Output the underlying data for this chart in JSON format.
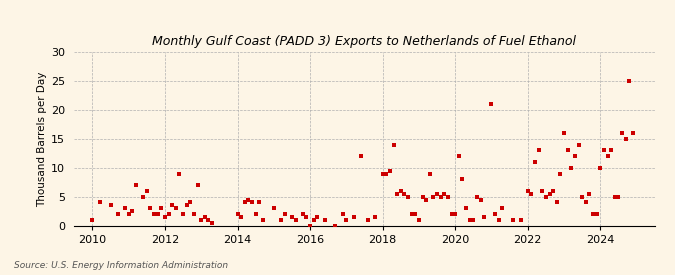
{
  "title": "Monthly Gulf Coast (PADD 3) Exports to Netherlands of Fuel Ethanol",
  "ylabel": "Thousand Barrels per Day",
  "source": "Source: U.S. Energy Information Administration",
  "background_color": "#fdf5e6",
  "dot_color": "#cc0000",
  "ylim": [
    0,
    30
  ],
  "yticks": [
    0,
    5,
    10,
    15,
    20,
    25,
    30
  ],
  "xticks": [
    2010,
    2012,
    2014,
    2016,
    2018,
    2020,
    2022,
    2024
  ],
  "xlim": [
    2009.5,
    2025.5
  ],
  "data": [
    [
      2010.0,
      1.0
    ],
    [
      2010.2,
      4.0
    ],
    [
      2010.5,
      3.5
    ],
    [
      2010.7,
      2.0
    ],
    [
      2010.9,
      3.0
    ],
    [
      2011.0,
      2.0
    ],
    [
      2011.1,
      2.5
    ],
    [
      2011.2,
      7.0
    ],
    [
      2011.4,
      5.0
    ],
    [
      2011.5,
      6.0
    ],
    [
      2011.6,
      3.0
    ],
    [
      2011.7,
      2.0
    ],
    [
      2011.8,
      2.0
    ],
    [
      2011.9,
      3.0
    ],
    [
      2012.0,
      1.5
    ],
    [
      2012.1,
      2.0
    ],
    [
      2012.2,
      3.5
    ],
    [
      2012.3,
      3.0
    ],
    [
      2012.4,
      9.0
    ],
    [
      2012.5,
      2.0
    ],
    [
      2012.6,
      3.5
    ],
    [
      2012.7,
      4.0
    ],
    [
      2012.8,
      2.0
    ],
    [
      2012.9,
      7.0
    ],
    [
      2013.0,
      1.0
    ],
    [
      2013.1,
      1.5
    ],
    [
      2013.2,
      1.0
    ],
    [
      2013.3,
      0.5
    ],
    [
      2014.0,
      2.0
    ],
    [
      2014.1,
      1.5
    ],
    [
      2014.2,
      4.0
    ],
    [
      2014.3,
      4.5
    ],
    [
      2014.4,
      4.0
    ],
    [
      2014.5,
      2.0
    ],
    [
      2014.6,
      4.0
    ],
    [
      2014.7,
      1.0
    ],
    [
      2015.0,
      3.0
    ],
    [
      2015.2,
      1.0
    ],
    [
      2015.3,
      2.0
    ],
    [
      2015.5,
      1.5
    ],
    [
      2015.6,
      1.0
    ],
    [
      2015.8,
      2.0
    ],
    [
      2015.9,
      1.5
    ],
    [
      2016.0,
      0.0
    ],
    [
      2016.1,
      1.0
    ],
    [
      2016.2,
      1.5
    ],
    [
      2016.4,
      1.0
    ],
    [
      2016.7,
      0.0
    ],
    [
      2016.9,
      2.0
    ],
    [
      2017.0,
      1.0
    ],
    [
      2017.2,
      1.5
    ],
    [
      2017.4,
      12.0
    ],
    [
      2017.6,
      1.0
    ],
    [
      2017.8,
      1.5
    ],
    [
      2018.0,
      9.0
    ],
    [
      2018.1,
      9.0
    ],
    [
      2018.2,
      9.5
    ],
    [
      2018.3,
      14.0
    ],
    [
      2018.4,
      5.5
    ],
    [
      2018.5,
      6.0
    ],
    [
      2018.6,
      5.5
    ],
    [
      2018.7,
      5.0
    ],
    [
      2018.8,
      2.0
    ],
    [
      2018.9,
      2.0
    ],
    [
      2019.0,
      1.0
    ],
    [
      2019.1,
      5.0
    ],
    [
      2019.2,
      4.5
    ],
    [
      2019.3,
      9.0
    ],
    [
      2019.4,
      5.0
    ],
    [
      2019.5,
      5.5
    ],
    [
      2019.6,
      5.0
    ],
    [
      2019.7,
      5.5
    ],
    [
      2019.8,
      5.0
    ],
    [
      2019.9,
      2.0
    ],
    [
      2020.0,
      2.0
    ],
    [
      2020.1,
      12.0
    ],
    [
      2020.2,
      8.0
    ],
    [
      2020.3,
      3.0
    ],
    [
      2020.4,
      1.0
    ],
    [
      2020.5,
      1.0
    ],
    [
      2020.6,
      5.0
    ],
    [
      2020.7,
      4.5
    ],
    [
      2020.8,
      1.5
    ],
    [
      2021.0,
      21.0
    ],
    [
      2021.1,
      2.0
    ],
    [
      2021.2,
      1.0
    ],
    [
      2021.3,
      3.0
    ],
    [
      2021.6,
      1.0
    ],
    [
      2021.8,
      1.0
    ],
    [
      2022.0,
      6.0
    ],
    [
      2022.1,
      5.5
    ],
    [
      2022.2,
      11.0
    ],
    [
      2022.3,
      13.0
    ],
    [
      2022.4,
      6.0
    ],
    [
      2022.5,
      5.0
    ],
    [
      2022.6,
      5.5
    ],
    [
      2022.7,
      6.0
    ],
    [
      2022.8,
      4.0
    ],
    [
      2022.9,
      9.0
    ],
    [
      2023.0,
      16.0
    ],
    [
      2023.1,
      13.0
    ],
    [
      2023.2,
      10.0
    ],
    [
      2023.3,
      12.0
    ],
    [
      2023.4,
      14.0
    ],
    [
      2023.5,
      5.0
    ],
    [
      2023.6,
      4.0
    ],
    [
      2023.7,
      5.5
    ],
    [
      2023.8,
      2.0
    ],
    [
      2023.9,
      2.0
    ],
    [
      2024.0,
      10.0
    ],
    [
      2024.1,
      13.0
    ],
    [
      2024.2,
      12.0
    ],
    [
      2024.3,
      13.0
    ],
    [
      2024.4,
      5.0
    ],
    [
      2024.5,
      5.0
    ],
    [
      2024.6,
      16.0
    ],
    [
      2024.7,
      15.0
    ],
    [
      2024.8,
      25.0
    ],
    [
      2024.9,
      16.0
    ]
  ]
}
